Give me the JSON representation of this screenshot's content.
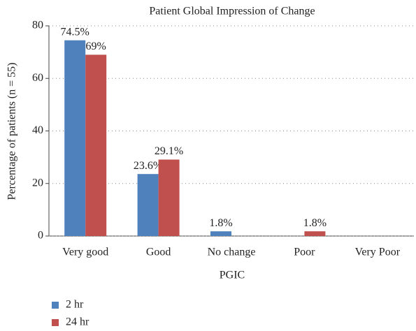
{
  "chart_data": {
    "type": "bar",
    "title": "Patient Global Impression of Change",
    "x_label": "PGIC",
    "y_label": "Percentage of patients (n = 55)",
    "categories": [
      "Very good",
      "Good",
      "No change",
      "Poor",
      "Very Poor"
    ],
    "series": [
      {
        "name": "2 hr",
        "color": "#4f81bd",
        "values": [
          74.5,
          23.6,
          1.8,
          0,
          0
        ],
        "value_labels": [
          "74.5%",
          "23.6%",
          "1.8%",
          null,
          null
        ]
      },
      {
        "name": "24 hr",
        "color": "#c0504d",
        "values": [
          69,
          29.1,
          0,
          1.8,
          0
        ],
        "value_labels": [
          "69%",
          "29.1%",
          null,
          "1.8%",
          null
        ]
      }
    ],
    "ylim": [
      0,
      80
    ],
    "yticks": [
      0,
      20,
      40,
      60,
      80
    ],
    "grid": true,
    "legend": "bottom-left"
  }
}
